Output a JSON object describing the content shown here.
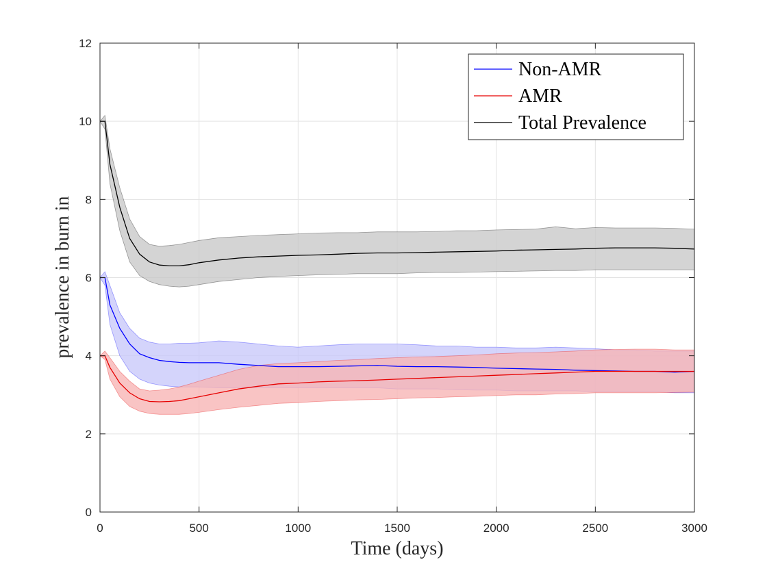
{
  "chart_data": {
    "type": "line",
    "title": "",
    "xlabel": "Time (days)",
    "ylabel": "prevalence in burn in",
    "xlim": [
      0,
      3000
    ],
    "ylim": [
      0,
      12
    ],
    "xticks": [
      0,
      500,
      1000,
      1500,
      2000,
      2500,
      3000
    ],
    "yticks": [
      0,
      2,
      4,
      6,
      8,
      10,
      12
    ],
    "grid": true,
    "legend_position": "top-right",
    "x": [
      0,
      25,
      50,
      100,
      150,
      200,
      250,
      300,
      350,
      400,
      450,
      500,
      600,
      700,
      800,
      900,
      1000,
      1100,
      1200,
      1300,
      1400,
      1500,
      1600,
      1700,
      1800,
      1900,
      2000,
      2100,
      2200,
      2300,
      2400,
      2500,
      2600,
      2700,
      2800,
      2900,
      3000
    ],
    "series": [
      {
        "name": "Non-AMR",
        "color": "#0000ff",
        "band_color": "#c8c8fa",
        "values": [
          6.0,
          6.0,
          5.3,
          4.7,
          4.3,
          4.05,
          3.95,
          3.88,
          3.85,
          3.83,
          3.82,
          3.82,
          3.82,
          3.78,
          3.75,
          3.72,
          3.72,
          3.72,
          3.73,
          3.74,
          3.75,
          3.73,
          3.72,
          3.72,
          3.71,
          3.7,
          3.68,
          3.67,
          3.66,
          3.65,
          3.63,
          3.62,
          3.61,
          3.6,
          3.6,
          3.58,
          3.6
        ],
        "lower": [
          6.0,
          5.8,
          4.8,
          4.0,
          3.6,
          3.4,
          3.3,
          3.25,
          3.22,
          3.2,
          3.2,
          3.2,
          3.18,
          3.18,
          3.18,
          3.18,
          3.18,
          3.18,
          3.18,
          3.18,
          3.18,
          3.15,
          3.15,
          3.15,
          3.13,
          3.12,
          3.12,
          3.1,
          3.1,
          3.1,
          3.1,
          3.08,
          3.08,
          3.08,
          3.08,
          3.05,
          3.05
        ],
        "upper": [
          6.0,
          6.15,
          5.8,
          5.1,
          4.7,
          4.45,
          4.35,
          4.3,
          4.3,
          4.32,
          4.32,
          4.33,
          4.38,
          4.35,
          4.3,
          4.25,
          4.22,
          4.25,
          4.28,
          4.3,
          4.3,
          4.3,
          4.28,
          4.25,
          4.25,
          4.22,
          4.22,
          4.2,
          4.2,
          4.22,
          4.2,
          4.18,
          4.15,
          4.15,
          4.12,
          4.12,
          4.12
        ]
      },
      {
        "name": "AMR",
        "color": "#e60000",
        "band_color": "#f7b4b4",
        "values": [
          4.0,
          4.0,
          3.7,
          3.3,
          3.05,
          2.9,
          2.83,
          2.82,
          2.83,
          2.85,
          2.9,
          2.95,
          3.05,
          3.15,
          3.22,
          3.28,
          3.3,
          3.33,
          3.35,
          3.36,
          3.38,
          3.4,
          3.42,
          3.44,
          3.46,
          3.48,
          3.5,
          3.52,
          3.54,
          3.56,
          3.58,
          3.6,
          3.6,
          3.6,
          3.6,
          3.6,
          3.6
        ],
        "lower": [
          4.0,
          3.9,
          3.4,
          2.95,
          2.7,
          2.58,
          2.52,
          2.5,
          2.5,
          2.5,
          2.52,
          2.55,
          2.62,
          2.68,
          2.73,
          2.78,
          2.8,
          2.83,
          2.85,
          2.87,
          2.88,
          2.9,
          2.92,
          2.93,
          2.95,
          2.96,
          2.98,
          3.0,
          3.0,
          3.02,
          3.03,
          3.05,
          3.05,
          3.05,
          3.05,
          3.06,
          3.07
        ],
        "upper": [
          4.0,
          4.12,
          3.95,
          3.6,
          3.35,
          3.15,
          3.1,
          3.12,
          3.15,
          3.2,
          3.27,
          3.35,
          3.5,
          3.65,
          3.75,
          3.8,
          3.82,
          3.85,
          3.88,
          3.9,
          3.93,
          3.95,
          3.97,
          3.98,
          4.0,
          4.02,
          4.05,
          4.07,
          4.08,
          4.1,
          4.12,
          4.15,
          4.16,
          4.17,
          4.17,
          4.15,
          4.15
        ]
      },
      {
        "name": "Total Prevalence",
        "color": "#000000",
        "band_color": "#c8c8c8",
        "values": [
          10.0,
          10.0,
          8.9,
          7.8,
          7.0,
          6.6,
          6.4,
          6.32,
          6.3,
          6.3,
          6.33,
          6.38,
          6.45,
          6.5,
          6.53,
          6.55,
          6.57,
          6.58,
          6.6,
          6.62,
          6.63,
          6.63,
          6.64,
          6.65,
          6.66,
          6.67,
          6.68,
          6.7,
          6.71,
          6.72,
          6.73,
          6.75,
          6.76,
          6.76,
          6.76,
          6.75,
          6.73
        ],
        "lower": [
          10.0,
          9.8,
          8.4,
          7.2,
          6.4,
          6.05,
          5.9,
          5.82,
          5.78,
          5.76,
          5.78,
          5.82,
          5.9,
          5.95,
          6.0,
          6.03,
          6.05,
          6.07,
          6.08,
          6.1,
          6.1,
          6.1,
          6.12,
          6.13,
          6.13,
          6.14,
          6.15,
          6.16,
          6.17,
          6.18,
          6.18,
          6.2,
          6.2,
          6.2,
          6.2,
          6.2,
          6.2
        ],
        "upper": [
          10.0,
          10.15,
          9.3,
          8.3,
          7.5,
          7.05,
          6.85,
          6.8,
          6.82,
          6.85,
          6.9,
          6.95,
          7.02,
          7.05,
          7.08,
          7.1,
          7.12,
          7.14,
          7.15,
          7.15,
          7.17,
          7.17,
          7.17,
          7.18,
          7.2,
          7.2,
          7.22,
          7.23,
          7.24,
          7.3,
          7.25,
          7.28,
          7.27,
          7.27,
          7.27,
          7.26,
          7.24
        ]
      }
    ]
  }
}
